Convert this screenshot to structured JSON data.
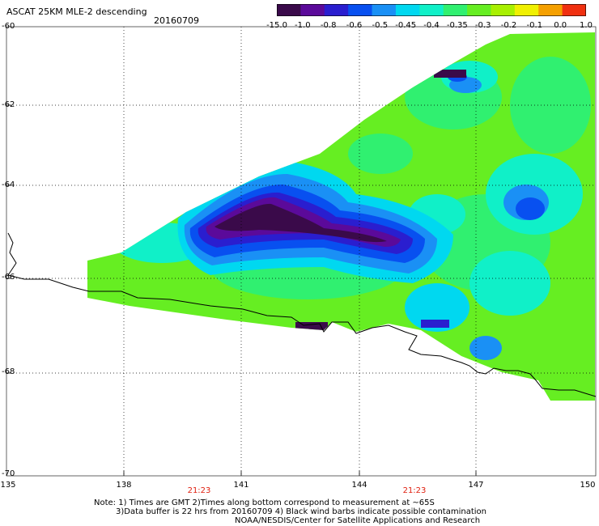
{
  "header": {
    "title": "ASCAT 25KM MLE-2 descending",
    "date": "20160709"
  },
  "colorbar": {
    "labels": [
      "-15.0",
      "-1.0",
      "-0.8",
      "-0.6",
      "-0.5",
      "-0.45",
      "-0.4",
      "-0.35",
      "-0.3",
      "-0.2",
      "-0.1",
      "0.0",
      "1.0"
    ],
    "colors": [
      "#3a0a4a",
      "#5b0a9a",
      "#2a1ecf",
      "#0850f0",
      "#1a90f5",
      "#00d8f0",
      "#10f0c8",
      "#30f070",
      "#66ee22",
      "#a8f000",
      "#f0f000",
      "#f5a000",
      "#f03010"
    ]
  },
  "axes": {
    "lat_labels": [
      "-60",
      "-62",
      "-64",
      "-66",
      "-68",
      "-70"
    ],
    "lon_labels": [
      "135",
      "138",
      "141",
      "144",
      "147",
      "150"
    ]
  },
  "pass_times": [
    "21:23",
    "21:23"
  ],
  "notes": {
    "line1": "Note: 1) Times are GMT 2)Times along bottom correspond to measurement at ~65S",
    "line2": "3)Data buffer is 22 hrs from 20160709 4) Black wind barbs indicate possible contamination",
    "line3": "NOAA/NESDIS/Center for Satellite Applications and Research"
  }
}
